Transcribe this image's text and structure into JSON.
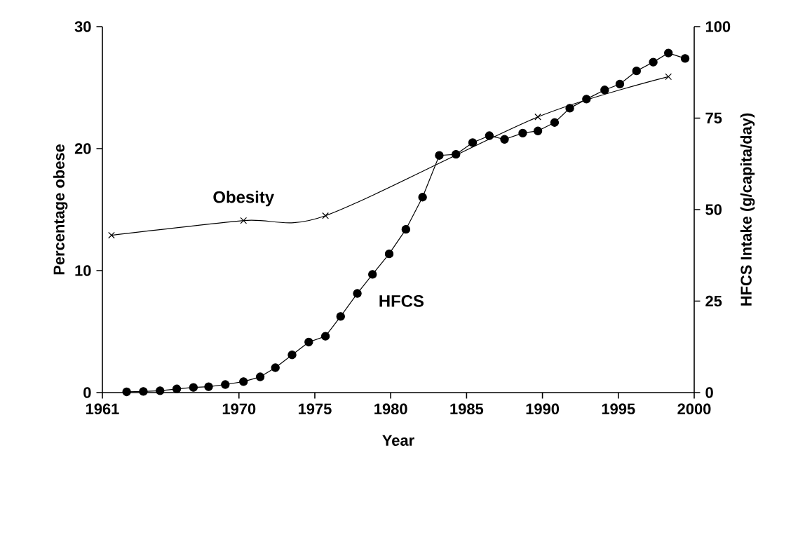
{
  "chart_data": {
    "type": "line",
    "xlabel": "Year",
    "ylabel": "Percentage obese",
    "y2label": "HFCS Intake (g/capita/day)",
    "xlim": [
      1961,
      2000
    ],
    "xticks": [
      1961,
      1970,
      1975,
      1980,
      1985,
      1990,
      1995,
      2000
    ],
    "ylim": [
      0,
      30
    ],
    "yticks": [
      0,
      10,
      20,
      30
    ],
    "y2lim": [
      0,
      100
    ],
    "y2ticks": [
      0,
      25,
      50,
      75,
      100
    ],
    "legend": false,
    "grid": false,
    "series": [
      {
        "name": "Obesity",
        "color": "#000000",
        "marker": "cross",
        "axis": "y",
        "x": [
          1961.6,
          1970.3,
          1975.7,
          1989.7,
          1998.3
        ],
        "values": [
          12.9,
          14.1,
          14.5,
          22.6,
          25.9
        ]
      },
      {
        "name": "HFCS",
        "color": "#000000",
        "marker": "circle",
        "axis": "y2",
        "x": [
          1962.6,
          1963.7,
          1964.8,
          1965.9,
          1967.0,
          1968.0,
          1969.1,
          1970.3,
          1971.4,
          1972.4,
          1973.5,
          1974.6,
          1975.7,
          1976.7,
          1977.8,
          1978.8,
          1979.9,
          1981.0,
          1982.1,
          1983.2,
          1984.3,
          1985.4,
          1986.5,
          1987.5,
          1988.7,
          1989.7,
          1990.8,
          1991.8,
          1992.9,
          1994.1,
          1995.1,
          1996.2,
          1997.3,
          1998.3,
          1999.4
        ],
        "values": [
          0.2,
          0.3,
          0.5,
          1,
          1.4,
          1.6,
          2.2,
          3,
          4.3,
          6.8,
          10.3,
          13.8,
          15.4,
          20.8,
          27.1,
          32.3,
          37.9,
          44.6,
          53.4,
          64.8,
          65.1,
          68.3,
          70.2,
          69.2,
          70.9,
          71.5,
          73.8,
          77.7,
          80.2,
          82.7,
          84.3,
          87.9,
          90.3,
          92.8,
          91.3
        ]
      }
    ]
  }
}
